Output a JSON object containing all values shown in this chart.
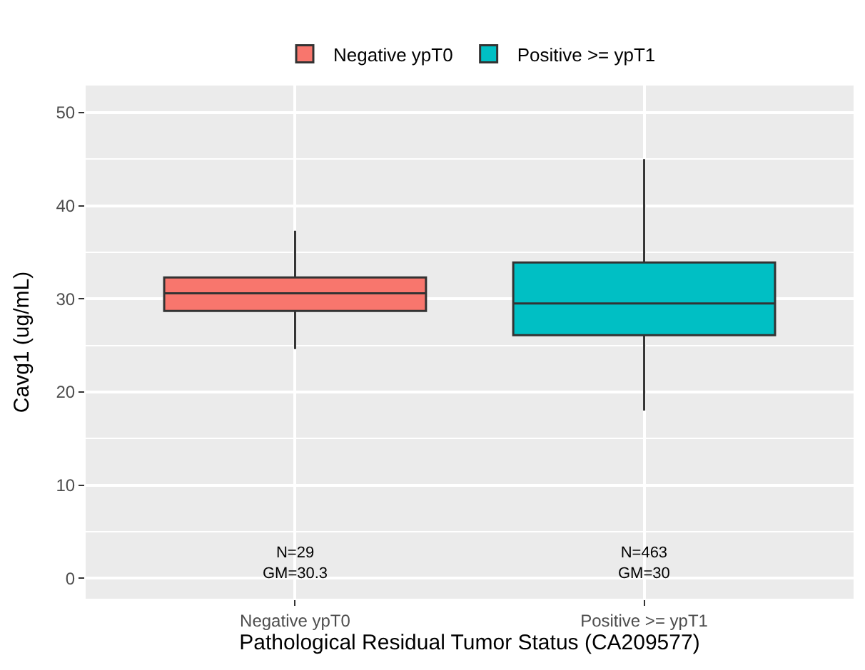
{
  "chart_data": {
    "type": "box",
    "xlabel": "Pathological Residual Tumor Status (CA209577)",
    "ylabel": "Cavg1 (ug/mL)",
    "categories": [
      "Negative ypT0",
      "Positive >= ypT1"
    ],
    "series": [
      {
        "name": "Negative ypT0",
        "color": "#f8766d",
        "boxes": [
          {
            "low": 24.6,
            "q1": 28.7,
            "median": 30.6,
            "q3": 32.3,
            "high": 37.3
          },
          null
        ]
      },
      {
        "name": "Positive >= ypT1",
        "color": "#00bfc4",
        "boxes": [
          null,
          {
            "low": 18.0,
            "q1": 26.1,
            "median": 29.5,
            "q3": 33.9,
            "high": 45.0
          }
        ]
      }
    ],
    "ylim": [
      -2.2,
      52.9
    ],
    "yticks": [
      0,
      10,
      20,
      30,
      40,
      50
    ],
    "grid": true,
    "legend": "top",
    "annotations": [
      "N=29\nGM=30.3",
      "N=463\nGM=30"
    ]
  }
}
